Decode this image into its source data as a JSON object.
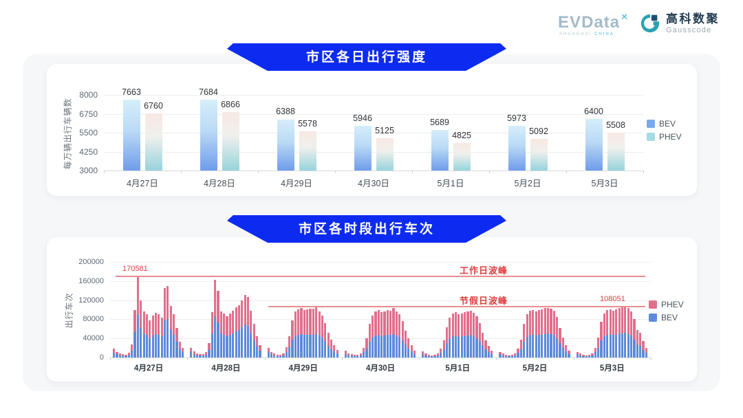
{
  "header": {
    "evdata": {
      "text": "EVData",
      "mark": "✕",
      "tagline_left": "SHANGHAI",
      "tagline_right": "CHINA"
    },
    "gausscode": {
      "cn": "高科数聚",
      "en": "Gausscode"
    }
  },
  "colors": {
    "banner_blue": "#0d2bf0",
    "bev_gradient_top": "#d6eefa",
    "bev_gradient_bottom": "#6f9ceb",
    "phev_gradient_top": "#f7e8e3",
    "phev_gradient_mid": "#f0f0ed",
    "phev_gradient_bottom": "#97d4dc",
    "legend_bev_swatch": "#78a9ee",
    "legend_phev_swatch": "#a5dbe2",
    "bev_solid": "#5d8bd9",
    "phev_solid": "#e0708c",
    "annotation_red": "#e03e3e",
    "annotation_line_red": "#ea8c8c"
  },
  "chart_data": [
    {
      "type": "bar",
      "title": "市区各日出行强度",
      "ylabel": "每万辆出行车辆数",
      "ylim": [
        3000,
        8000
      ],
      "yticks": [
        3000,
        4250,
        5500,
        6750,
        8000
      ],
      "grid": true,
      "legend_position": "right",
      "legend": [
        "BEV",
        "PHEV"
      ],
      "categories": [
        "4月27日",
        "4月28日",
        "4月29日",
        "4月30日",
        "5月1日",
        "5月2日",
        "5月3日"
      ],
      "series": [
        {
          "name": "BEV",
          "values": [
            7663,
            7684,
            6388,
            5946,
            5689,
            5973,
            6400
          ]
        },
        {
          "name": "PHEV",
          "values": [
            6760,
            6866,
            5578,
            5125,
            4825,
            5092,
            5508
          ]
        }
      ]
    },
    {
      "type": "bar",
      "subtype": "stacked-hourly",
      "title": "市区各时段出行车次",
      "ylabel": "出行车次",
      "ylim": [
        0,
        200000
      ],
      "yticks": [
        0,
        40000,
        80000,
        120000,
        160000,
        200000
      ],
      "grid": true,
      "legend_position": "right",
      "legend": [
        "PHEV",
        "BEV"
      ],
      "categories": [
        "4月27日",
        "4月28日",
        "4月29日",
        "4月30日",
        "5月1日",
        "5月2日",
        "5月3日"
      ],
      "bars_per_category": 24,
      "series": [
        {
          "name": "BEV",
          "values_by_day": [
            [
              10000,
              6600,
              5000,
              3900,
              3300,
              5500,
              15000,
              53000,
              91000,
              62000,
              50000,
              47000,
              41000,
              46000,
              49000,
              47000,
              44000,
              78000,
              80000,
              57000,
              48000,
              33000,
              18000,
              11000
            ],
            [
              11000,
              7200,
              5000,
              4100,
              3900,
              6000,
              16000,
              50000,
              86000,
              74000,
              51000,
              48000,
              45000,
              48000,
              51000,
              55000,
              58000,
              63000,
              69000,
              66000,
              52000,
              37000,
              24000,
              14000
            ],
            [
              11000,
              6600,
              4400,
              3300,
              3600,
              5000,
              12000,
              22000,
              37000,
              45000,
              48000,
              49000,
              47000,
              48000,
              48000,
              48000,
              51000,
              46000,
              42000,
              34000,
              25000,
              18000,
              13000,
              8000
            ],
            [
              7700,
              5000,
              3900,
              3000,
              3300,
              5000,
              11000,
              19000,
              33000,
              42000,
              46000,
              48000,
              45000,
              46000,
              47000,
              47000,
              49000,
              46000,
              43000,
              36000,
              27000,
              19000,
              13000,
              7500
            ],
            [
              7200,
              4700,
              3600,
              2800,
              3000,
              4400,
              10000,
              17000,
              30000,
              39000,
              44000,
              45000,
              43000,
              44000,
              45000,
              46000,
              47000,
              44000,
              41000,
              34000,
              25000,
              17000,
              12000,
              7000
            ],
            [
              6600,
              4400,
              3300,
              2800,
              3000,
              4400,
              10000,
              18000,
              33000,
              43000,
              47000,
              48000,
              46000,
              47000,
              48000,
              49000,
              50000,
              49000,
              47000,
              40000,
              30000,
              20000,
              13000,
              7500
            ],
            [
              6600,
              4400,
              3300,
              2800,
              3300,
              5000,
              11000,
              20000,
              36000,
              44000,
              47000,
              48000,
              47000,
              48000,
              50000,
              51000,
              52000,
              49000,
              46000,
              38000,
              28000,
              25000,
              16000,
              10000
            ]
          ]
        },
        {
          "name": "PHEV",
          "values_by_day": [
            [
              8000,
              5400,
              4000,
              3100,
              2700,
              4500,
              13000,
              47000,
              79581,
              57000,
              46000,
              43000,
              37000,
              42000,
              44000,
              43000,
              39000,
              67000,
              69000,
              51000,
              42000,
              29000,
              15000,
              9000
            ],
            [
              9000,
              5800,
              4000,
              3400,
              3100,
              5000,
              14000,
              45000,
              77000,
              66000,
              46000,
              44000,
              41000,
              44000,
              47000,
              50000,
              52000,
              57000,
              62000,
              60000,
              46000,
              33000,
              21000,
              12000
            ],
            [
              9000,
              5400,
              3600,
              2700,
              2900,
              4000,
              10000,
              23000,
              41000,
              51000,
              53000,
              54000,
              52000,
              53000,
              54000,
              54000,
              57000,
              51000,
              46000,
              38000,
              27000,
              20000,
              13000,
              8000
            ],
            [
              6300,
              4000,
              3100,
              2500,
              2700,
              4000,
              9000,
              21000,
              37000,
              46000,
              51000,
              52000,
              50000,
              51000,
              52000,
              51000,
              55000,
              50000,
              47000,
              40000,
              29000,
              21000,
              13000,
              7500
            ],
            [
              5800,
              3800,
              2900,
              2200,
              2500,
              3600,
              8000,
              19000,
              34000,
              44000,
              48000,
              50000,
              47000,
              48000,
              50000,
              50000,
              51000,
              49000,
              45000,
              38000,
              27000,
              19000,
              12000,
              7000
            ],
            [
              5400,
              3600,
              2700,
              2200,
              2500,
              3600,
              8000,
              20000,
              37000,
              47000,
              51000,
              52000,
              50000,
              52000,
              53000,
              54000,
              54000,
              53000,
              51000,
              45000,
              32000,
              22000,
              13000,
              7500
            ],
            [
              5400,
              3600,
              2700,
              2200,
              2700,
              4000,
              9000,
              22000,
              39000,
              48000,
              52000,
              53000,
              51000,
              53000,
              54000,
              55000,
              56051,
              54000,
              50000,
              42000,
              30000,
              27000,
              18000,
              10000
            ]
          ]
        }
      ],
      "annotations": {
        "workday_peak": {
          "label": "工作日波峰",
          "value": 170581,
          "value_label": "170581"
        },
        "holiday_peak": {
          "label": "节假日波峰",
          "value": 108051,
          "value_label": "108051"
        }
      }
    }
  ]
}
